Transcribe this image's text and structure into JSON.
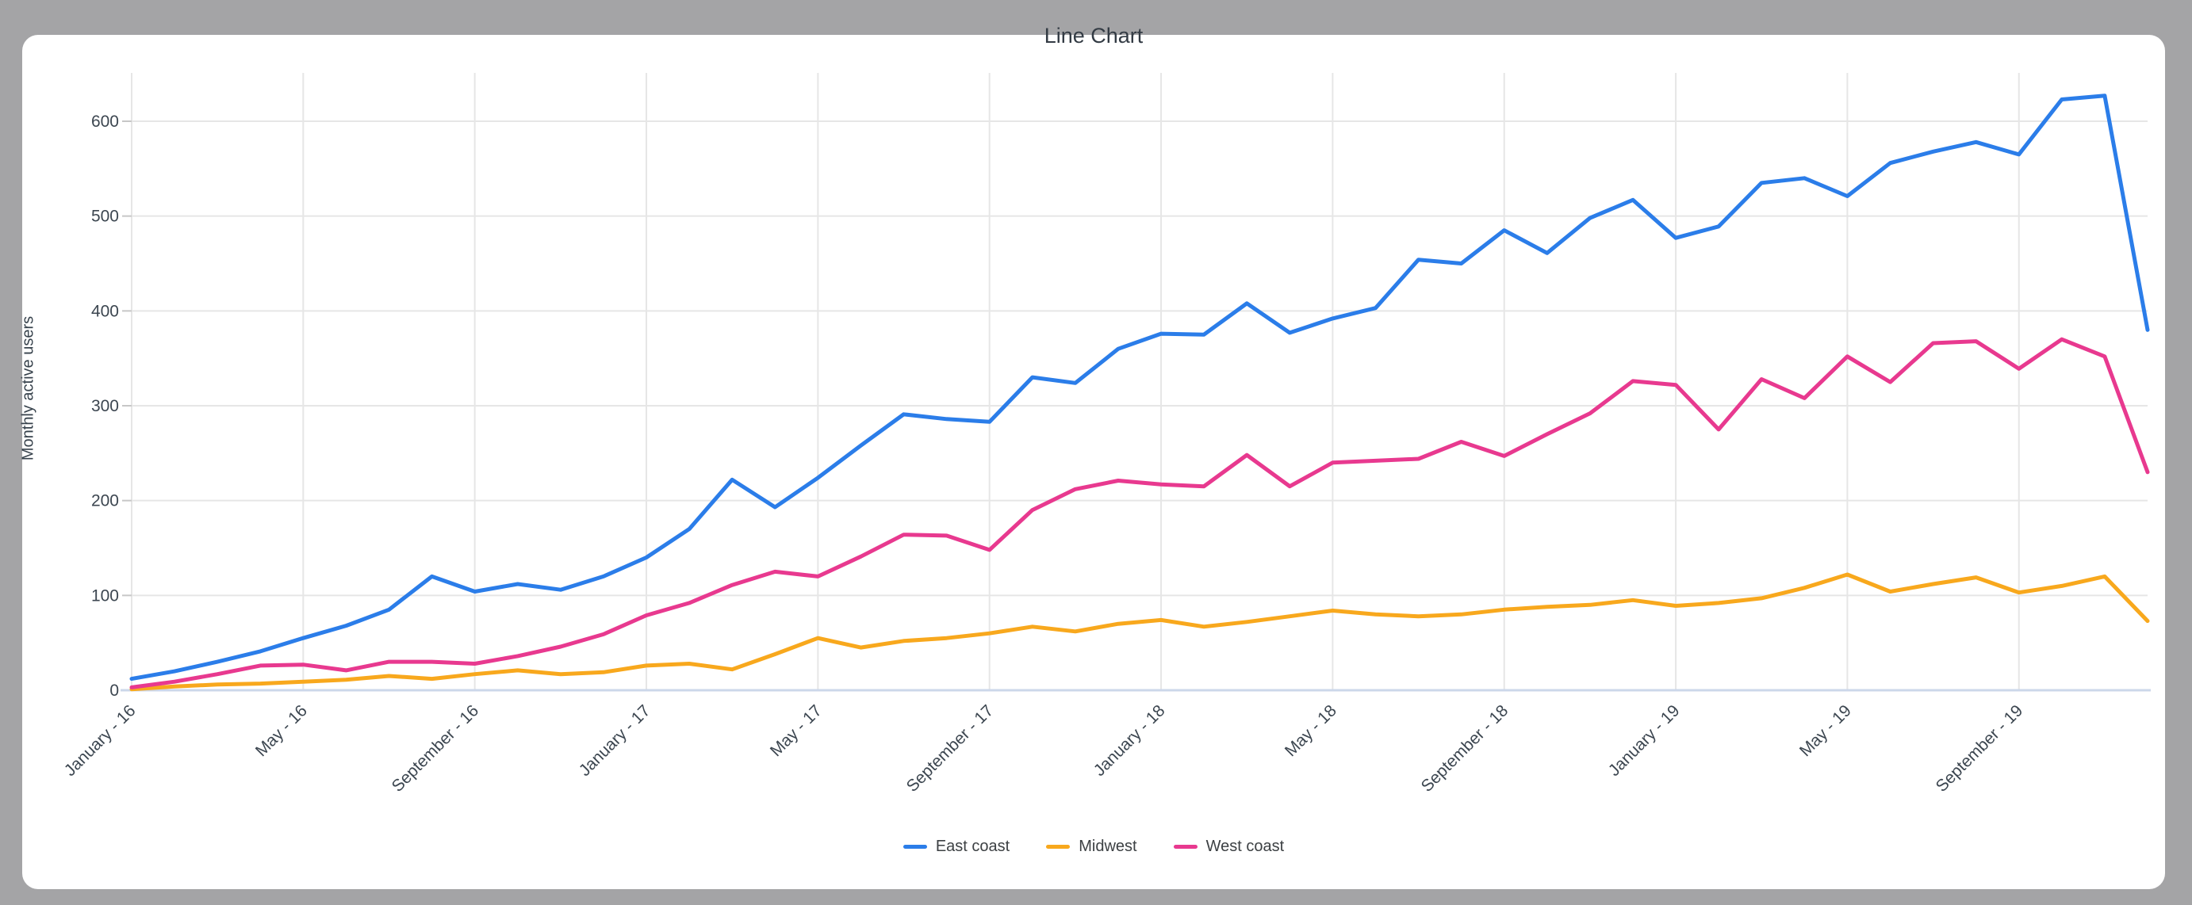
{
  "title": "Line Chart",
  "y_axis_title": "Monthly active users",
  "legend": {
    "items": [
      "East coast",
      "Midwest",
      "West coast"
    ]
  },
  "colors": {
    "east_coast": "#2b7de9",
    "midwest": "#f8a81d",
    "west_coast": "#e8398f",
    "grid": "#e6e6e6",
    "baseline": "#ccd7ea",
    "tick_mark": "#c7c7c7",
    "tick_text": "#3c4650",
    "title_text": "#333b44",
    "window_frame": "#a4a4a6",
    "card": "#ffffff"
  },
  "chart_data": {
    "type": "line",
    "title": "Line Chart",
    "xlabel": "",
    "ylabel": "Monthly active users",
    "ylim": [
      0,
      600
    ],
    "y_ticks": [
      0,
      100,
      200,
      300,
      400,
      500,
      600
    ],
    "grid": true,
    "legend_position": "bottom",
    "n_points": 48,
    "x_tick_indices": [
      0,
      4,
      8,
      12,
      16,
      20,
      24,
      28,
      32,
      36,
      40,
      44
    ],
    "x_tick_labels": [
      "January - 16",
      "May - 16",
      "September - 16",
      "January - 17",
      "May - 17",
      "September - 17",
      "January - 18",
      "May - 18",
      "September - 18",
      "January - 19",
      "May - 19",
      "September - 19"
    ],
    "series": [
      {
        "name": "East coast",
        "color": "#2b7de9",
        "values": [
          12,
          20,
          30,
          41,
          55,
          68,
          85,
          120,
          104,
          112,
          106,
          120,
          140,
          170,
          222,
          193,
          224,
          258,
          291,
          286,
          283,
          330,
          324,
          360,
          376,
          375,
          408,
          377,
          392,
          403,
          454,
          450,
          485,
          461,
          498,
          517,
          477,
          489,
          535,
          540,
          521,
          556,
          568,
          578,
          565,
          623,
          627,
          380
        ]
      },
      {
        "name": "Midwest",
        "color": "#f8a81d",
        "values": [
          1,
          4,
          6,
          7,
          9,
          11,
          15,
          12,
          17,
          21,
          17,
          19,
          26,
          28,
          22,
          38,
          55,
          45,
          52,
          55,
          60,
          67,
          62,
          70,
          74,
          67,
          72,
          78,
          84,
          80,
          78,
          80,
          85,
          88,
          90,
          95,
          89,
          92,
          97,
          108,
          122,
          104,
          112,
          119,
          103,
          110,
          120,
          73
        ]
      },
      {
        "name": "West coast",
        "color": "#e8398f",
        "values": [
          3,
          9,
          17,
          26,
          27,
          21,
          30,
          30,
          28,
          36,
          46,
          59,
          79,
          92,
          111,
          125,
          120,
          141,
          164,
          163,
          148,
          190,
          212,
          221,
          217,
          215,
          248,
          215,
          240,
          242,
          244,
          262,
          247,
          270,
          292,
          326,
          322,
          275,
          328,
          308,
          352,
          325,
          366,
          368,
          339,
          370,
          352,
          230
        ]
      }
    ]
  }
}
